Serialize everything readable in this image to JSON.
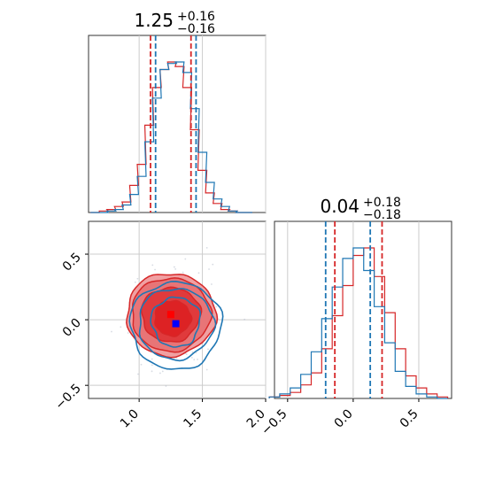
{
  "chart_data": [
    {
      "type": "histogram",
      "panel": "top-left marginal",
      "title_main": "1.25",
      "title_sup": "+0.16",
      "title_sub": "−0.16",
      "xlim": [
        0.6,
        2.0
      ],
      "grid": true,
      "series": [
        {
          "name": "",
          "color": "#d62728",
          "x": [
            0.65,
            0.72,
            0.78,
            0.84,
            0.9,
            0.96,
            1.02,
            1.08,
            1.14,
            1.2,
            1.26,
            1.32,
            1.38,
            1.44,
            1.5,
            1.56,
            1.62,
            1.68,
            1.74,
            1.8,
            1.86
          ],
          "values": [
            0.0,
            0.01,
            0.02,
            0.04,
            0.07,
            0.18,
            0.32,
            0.58,
            0.83,
            0.95,
            1.0,
            0.97,
            0.83,
            0.55,
            0.28,
            0.13,
            0.06,
            0.02,
            0.01,
            0.0,
            0.0
          ],
          "bounds": [
            1.09,
            1.41
          ]
        },
        {
          "name": "",
          "color": "#1f77b4",
          "x": [
            0.65,
            0.72,
            0.78,
            0.84,
            0.9,
            0.96,
            1.02,
            1.08,
            1.14,
            1.2,
            1.26,
            1.32,
            1.38,
            1.44,
            1.5,
            1.56,
            1.62,
            1.68,
            1.74,
            1.8,
            1.86
          ],
          "values": [
            0.0,
            0.0,
            0.01,
            0.02,
            0.05,
            0.12,
            0.24,
            0.47,
            0.76,
            0.95,
            0.99,
            1.0,
            0.93,
            0.69,
            0.4,
            0.2,
            0.09,
            0.04,
            0.01,
            0.0,
            0.0
          ],
          "bounds": [
            1.13,
            1.45
          ]
        }
      ]
    },
    {
      "type": "contour",
      "panel": "bottom-left joint",
      "xlim": [
        0.6,
        2.0
      ],
      "ylim": [
        -0.6,
        0.75
      ],
      "xticks": [
        "1.0",
        "1.5",
        "2.0"
      ],
      "yticks": [
        "0.5",
        "0.0",
        "−0.5"
      ],
      "grid": true,
      "series": [
        {
          "name": "",
          "color": "#d62728",
          "center": [
            1.25,
            0.04
          ],
          "spread": [
            0.16,
            0.18
          ]
        },
        {
          "name": "",
          "color": "#1f77b4",
          "center": [
            1.29,
            -0.03
          ],
          "spread": [
            0.16,
            0.18
          ]
        }
      ],
      "markers": [
        {
          "color": "#ff0000",
          "x": 1.25,
          "y": 0.04
        },
        {
          "color": "#0000ff",
          "x": 1.29,
          "y": -0.03
        }
      ]
    },
    {
      "type": "histogram",
      "panel": "bottom-right marginal",
      "title_main": "0.04",
      "title_sup": "+0.18",
      "title_sub": "−0.18",
      "xlim": [
        -0.6,
        0.75
      ],
      "xticks": [
        "−0.5",
        "0.0",
        "0.5"
      ],
      "grid": true,
      "series": [
        {
          "name": "",
          "color": "#d62728",
          "x": [
            -0.6,
            -0.52,
            -0.44,
            -0.36,
            -0.28,
            -0.2,
            -0.12,
            -0.04,
            0.04,
            0.12,
            0.2,
            0.28,
            0.36,
            0.44,
            0.52,
            0.6,
            0.68
          ],
          "values": [
            0.01,
            0.02,
            0.04,
            0.09,
            0.17,
            0.33,
            0.55,
            0.75,
            0.95,
            1.0,
            0.81,
            0.57,
            0.33,
            0.15,
            0.07,
            0.03,
            0.01
          ],
          "bounds": [
            -0.14,
            0.22
          ]
        },
        {
          "name": "",
          "color": "#1f77b4",
          "x": [
            -0.6,
            -0.52,
            -0.44,
            -0.36,
            -0.28,
            -0.2,
            -0.12,
            -0.04,
            0.04,
            0.12,
            0.2,
            0.28,
            0.36,
            0.44,
            0.52,
            0.6,
            0.68
          ],
          "values": [
            0.01,
            0.03,
            0.07,
            0.16,
            0.31,
            0.53,
            0.74,
            0.93,
            1.0,
            0.85,
            0.61,
            0.37,
            0.18,
            0.08,
            0.03,
            0.01,
            0.0
          ],
          "bounds": [
            -0.21,
            0.13
          ]
        }
      ]
    }
  ]
}
